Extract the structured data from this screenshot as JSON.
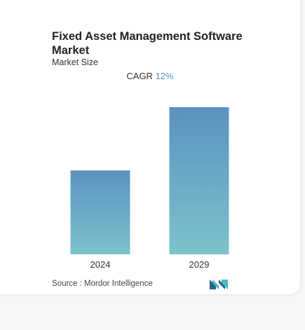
{
  "chart_data": {
    "type": "bar",
    "title": "Fixed Asset Management Software Market",
    "subtitle": "Market Size",
    "cagr_label": "CAGR",
    "cagr_value": "12%",
    "categories": [
      "2024",
      "2029"
    ],
    "values": [
      0.57,
      1.0
    ],
    "value_note": "relative heights; no axis values shown",
    "xlabel": "",
    "ylabel": "",
    "grid": false,
    "legend": "none",
    "bar_gradient": [
      "#5b92bf",
      "#7cc3cc"
    ]
  },
  "footer": {
    "source_text": "Source :  Mordor Intelligence",
    "logo": "mordor-intelligence-logo"
  }
}
